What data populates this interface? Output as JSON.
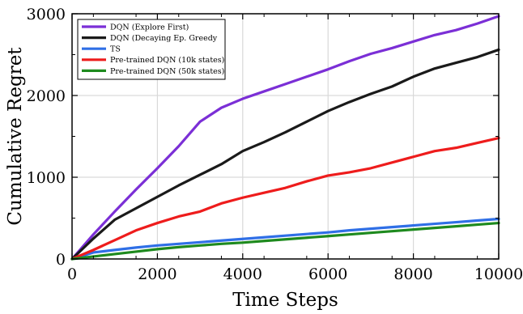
{
  "chart_data": {
    "type": "line",
    "title": "",
    "xlabel": "Time Steps",
    "ylabel": "Cumulative Regret",
    "xlim": [
      0,
      10000
    ],
    "ylim": [
      0,
      3000
    ],
    "xticks": [
      0,
      2000,
      4000,
      6000,
      8000,
      10000
    ],
    "yticks": [
      0,
      1000,
      2000,
      3000
    ],
    "grid": true,
    "legend_position": "top-left",
    "series": [
      {
        "name": "DQN (Explore First)",
        "color": "#7b2fd6",
        "x": [
          0,
          500,
          1000,
          1500,
          2000,
          2500,
          3000,
          3500,
          4000,
          4500,
          5000,
          5500,
          6000,
          6500,
          7000,
          7500,
          8000,
          8500,
          9000,
          9500,
          10000
        ],
        "y": [
          0,
          300,
          580,
          850,
          1110,
          1380,
          1680,
          1850,
          1960,
          2050,
          2140,
          2230,
          2320,
          2420,
          2510,
          2580,
          2660,
          2740,
          2800,
          2880,
          2970
        ]
      },
      {
        "name": "DQN (Decaying Ep. Greedy",
        "color": "#1a1a1a",
        "x": [
          0,
          500,
          1000,
          1500,
          2000,
          2500,
          3000,
          3500,
          4000,
          4500,
          5000,
          5500,
          6000,
          6500,
          7000,
          7500,
          8000,
          8500,
          9000,
          9500,
          10000
        ],
        "y": [
          0,
          250,
          480,
          620,
          760,
          900,
          1030,
          1160,
          1320,
          1430,
          1550,
          1680,
          1810,
          1920,
          2020,
          2110,
          2230,
          2330,
          2400,
          2470,
          2560
        ]
      },
      {
        "name": "TS",
        "color": "#2f6fe6",
        "x": [
          0,
          500,
          1000,
          1500,
          2000,
          2500,
          3000,
          3500,
          4000,
          4500,
          5000,
          5500,
          6000,
          6500,
          7000,
          7500,
          8000,
          8500,
          9000,
          9500,
          10000
        ],
        "y": [
          0,
          80,
          110,
          140,
          165,
          185,
          205,
          225,
          245,
          265,
          285,
          305,
          325,
          350,
          370,
          390,
          410,
          430,
          450,
          470,
          490
        ]
      },
      {
        "name": "Pre-trained DQN (10k states)",
        "color": "#ee1c1c",
        "x": [
          0,
          500,
          1000,
          1500,
          2000,
          2500,
          3000,
          3500,
          4000,
          4500,
          5000,
          5500,
          6000,
          6500,
          7000,
          7500,
          8000,
          8500,
          9000,
          9500,
          10000
        ],
        "y": [
          0,
          110,
          230,
          350,
          440,
          520,
          580,
          680,
          750,
          810,
          870,
          950,
          1020,
          1060,
          1110,
          1180,
          1250,
          1320,
          1360,
          1420,
          1480
        ]
      },
      {
        "name": "Pre-trained DQN (50k states)",
        "color": "#1e8a1e",
        "x": [
          0,
          500,
          1000,
          1500,
          2000,
          2500,
          3000,
          3500,
          4000,
          4500,
          5000,
          5500,
          6000,
          6500,
          7000,
          7500,
          8000,
          8500,
          9000,
          9500,
          10000
        ],
        "y": [
          0,
          30,
          60,
          90,
          120,
          145,
          165,
          185,
          200,
          220,
          240,
          260,
          280,
          300,
          320,
          340,
          360,
          380,
          400,
          420,
          440
        ]
      }
    ]
  }
}
